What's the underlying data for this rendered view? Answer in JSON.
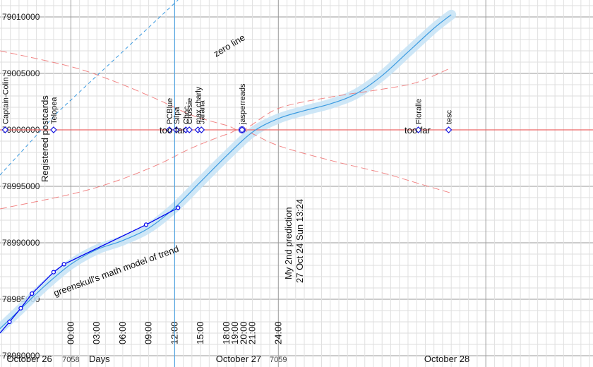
{
  "chart_data": {
    "type": "line",
    "title": "",
    "xlabel": "",
    "ylabel": "",
    "x_unit": "hours from October 26 00:00",
    "xlim": [
      -8.2,
      60.4
    ],
    "ylim": [
      78979000,
      79011500
    ],
    "grid": true,
    "y_ticks": [
      78980000,
      78985000,
      78990000,
      78995000,
      79000000,
      79005000,
      79010000
    ],
    "y_tick_labels": [
      "78980000",
      "78985000",
      "78990000",
      "78995000",
      "79000000",
      "79005000",
      "79010000"
    ],
    "x_time_ticks": [
      {
        "x": 0,
        "label": "00:00"
      },
      {
        "x": 3,
        "label": "03:00"
      },
      {
        "x": 6,
        "label": "06:00"
      },
      {
        "x": 9,
        "label": "09:00"
      },
      {
        "x": 12,
        "label": "12:00"
      },
      {
        "x": 15,
        "label": "15:00"
      },
      {
        "x": 18,
        "label": "18:00"
      },
      {
        "x": 19,
        "label": "19:00"
      },
      {
        "x": 20,
        "label": "20:00"
      },
      {
        "x": 21,
        "label": "21:00"
      },
      {
        "x": 24,
        "label": "24:00"
      }
    ],
    "x_bottom_labels": [
      {
        "x": -4.8,
        "label": "October 26"
      },
      {
        "x": 0,
        "label": "7058"
      },
      {
        "x": 3.3,
        "label": "Days"
      },
      {
        "x": 19.4,
        "label": "October 27"
      },
      {
        "x": 24,
        "label": "7059"
      },
      {
        "x": 43.5,
        "label": "October 28"
      }
    ],
    "target_line": {
      "y": 79000000,
      "color": "#ee6666"
    },
    "series": [
      {
        "name": "",
        "color": "#0000ee",
        "points": [
          [
            -7.1,
            78983000
          ],
          [
            -5.8,
            78984200
          ],
          [
            -4.5,
            78985500
          ],
          [
            -2.0,
            78987400
          ],
          [
            -0.8,
            78988100
          ],
          [
            8.7,
            78991600
          ],
          [
            12.4,
            78993100
          ]
        ]
      },
      {
        "name": "",
        "color": "#3d9be0",
        "band_color": "#c6e3f6",
        "points": [
          [
            -8.2,
            78982400
          ],
          [
            -6.0,
            78984000
          ],
          [
            -3.0,
            78986200
          ],
          [
            0.0,
            78988100
          ],
          [
            3.0,
            78989400
          ],
          [
            6.0,
            78990200
          ],
          [
            9.0,
            78991300
          ],
          [
            12.0,
            78993100
          ],
          [
            15.0,
            78995400
          ],
          [
            18.0,
            78997700
          ],
          [
            21.0,
            78999800
          ],
          [
            24.0,
            79001000
          ],
          [
            27.0,
            79001700
          ],
          [
            30.0,
            79002300
          ],
          [
            33.0,
            79003200
          ],
          [
            36.0,
            79004800
          ],
          [
            39.0,
            79006900
          ],
          [
            42.0,
            79009000
          ],
          [
            44.0,
            79010200
          ]
        ]
      }
    ],
    "envelope": {
      "color": "#ee6666",
      "upper": [
        [
          -8.2,
          79007000
        ],
        [
          0.0,
          79005600
        ],
        [
          5.0,
          79004300
        ],
        [
          10.0,
          79002700
        ],
        [
          14.0,
          79001300
        ],
        [
          18.0,
          79000400
        ],
        [
          20.0,
          79000050
        ],
        [
          24.0,
          79001900
        ],
        [
          30.0,
          79002900
        ],
        [
          36.0,
          79003600
        ],
        [
          40.0,
          79004200
        ],
        [
          44.0,
          79005500
        ]
      ],
      "lower": [
        [
          -8.2,
          78993000
        ],
        [
          0.0,
          78994300
        ],
        [
          5.0,
          78995400
        ],
        [
          10.0,
          78996900
        ],
        [
          14.0,
          78998400
        ],
        [
          18.0,
          78999600
        ],
        [
          20.0,
          78999950
        ],
        [
          24.0,
          78998600
        ],
        [
          30.0,
          78997300
        ],
        [
          36.0,
          78996200
        ],
        [
          40.0,
          78995300
        ],
        [
          44.0,
          78994400
        ]
      ]
    },
    "zero_line": {
      "color": "#3d9be0",
      "points": [
        [
          -8.2,
          78996000
        ],
        [
          -1.6,
          79001500
        ],
        [
          12.4,
          79011500
        ]
      ],
      "label": "zero line"
    },
    "prediction_line": {
      "x": 12.0,
      "color": "#3d9be0",
      "label_line1": "My 2nd prediction",
      "label_line2": "27 Oct 24 Sun 13:24"
    },
    "participants": [
      {
        "x": -7.6,
        "y": 79000000,
        "label": "Captain-Colin"
      },
      {
        "x": -2.0,
        "y": 79000000,
        "label": "Telopea"
      },
      {
        "x": 11.4,
        "y": 79000000,
        "label": "PCBlue"
      },
      {
        "x": 12.2,
        "y": 79000000,
        "label": "Silpa"
      },
      {
        "x": 13.3,
        "y": 79000000,
        "label": "Choc"
      },
      {
        "x": 13.7,
        "y": 79000000,
        "label": "Crossie"
      },
      {
        "x": 14.7,
        "y": 79000000,
        "label": "max charly"
      },
      {
        "x": 15.1,
        "y": 79000000,
        "label": "Jarana"
      },
      {
        "x": 19.8,
        "y": 79000000,
        "label": "jasperreads"
      },
      {
        "x": 40.2,
        "y": 79000000,
        "label": "Floralle"
      },
      {
        "x": 43.7,
        "y": 79000000,
        "label": "tesc"
      }
    ],
    "annotations": {
      "too_far_left": "too far",
      "too_far_right": "too far",
      "registered": "Registered postcards",
      "trend_model": "greenskull's math model of trend"
    }
  }
}
